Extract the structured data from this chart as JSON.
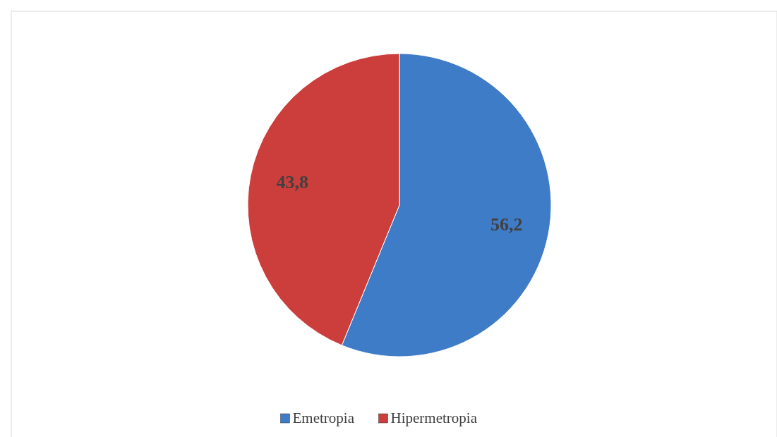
{
  "chart_data": {
    "type": "pie",
    "categories": [
      "Emetropia",
      "Hipermetropia"
    ],
    "values": [
      56.2,
      43.8
    ],
    "colors": [
      "#3f7cc8",
      "#cc3e3c"
    ],
    "value_labels": [
      "56,2",
      "43,8"
    ],
    "legend": "bottom"
  }
}
